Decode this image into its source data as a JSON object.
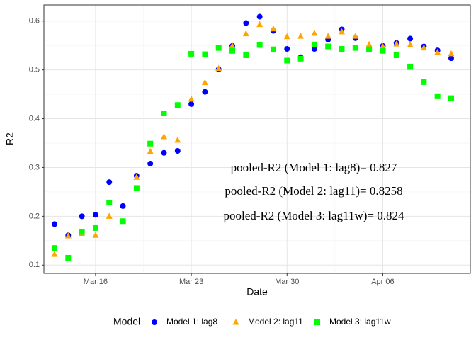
{
  "chart_data": {
    "type": "scatter",
    "x_label": "Date",
    "y_label": "R2",
    "categories": [
      "Mar 13",
      "Mar 14",
      "Mar 15",
      "Mar 16",
      "Mar 17",
      "Mar 18",
      "Mar 19",
      "Mar 20",
      "Mar 21",
      "Mar 22",
      "Mar 23",
      "Mar 24",
      "Mar 25",
      "Mar 26",
      "Mar 27",
      "Mar 28",
      "Mar 29",
      "Mar 30",
      "Mar 31",
      "Apr 01",
      "Apr 02",
      "Apr 03",
      "Apr 04",
      "Apr 05",
      "Apr 06",
      "Apr 07",
      "Apr 08",
      "Apr 09",
      "Apr 10",
      "Apr 11"
    ],
    "xticks": [
      "Mar 16",
      "Mar 23",
      "Mar 30",
      "Apr 06"
    ],
    "ylim": [
      0.083,
      0.633
    ],
    "yticks": [
      0.1,
      0.2,
      0.3,
      0.4,
      0.5,
      0.6
    ],
    "grid": true,
    "legend_title": "Model",
    "legend_position": "bottom",
    "series": [
      {
        "name": "Model 1: lag8",
        "color": "#0000ff",
        "shape": "circle",
        "values": [
          0.184,
          0.161,
          0.2,
          0.203,
          0.27,
          0.221,
          0.283,
          0.308,
          0.33,
          0.334,
          0.43,
          0.455,
          0.501,
          0.549,
          0.596,
          0.609,
          0.58,
          0.543,
          0.526,
          0.543,
          0.562,
          0.583,
          0.565,
          0.542,
          0.549,
          0.555,
          0.564,
          0.548,
          0.54,
          0.524
        ]
      },
      {
        "name": "Model 2: lag11",
        "color": "#ffa500",
        "shape": "triangle",
        "values": [
          0.122,
          0.16,
          0.165,
          0.161,
          0.2,
          0.19,
          0.28,
          0.333,
          0.363,
          0.356,
          0.44,
          0.474,
          0.503,
          0.549,
          0.574,
          0.593,
          0.584,
          0.568,
          0.569,
          0.575,
          0.569,
          0.578,
          0.569,
          0.552,
          0.548,
          0.553,
          0.551,
          0.545,
          0.536,
          0.533
        ]
      },
      {
        "name": "Model 3: lag11w",
        "color": "#00ff00",
        "shape": "square",
        "values": [
          0.135,
          0.115,
          0.168,
          0.176,
          0.228,
          0.19,
          0.258,
          0.349,
          0.411,
          0.428,
          0.533,
          0.532,
          0.545,
          0.539,
          0.53,
          0.551,
          0.542,
          0.519,
          0.523,
          0.552,
          0.548,
          0.543,
          0.545,
          0.542,
          0.539,
          0.53,
          0.506,
          0.475,
          0.446,
          0.442
        ]
      }
    ],
    "annotations": [
      "pooled-R2 (Model 1: lag8)= 0.827",
      "pooled-R2 (Model 2: lag11)= 0.8258",
      "pooled-R2 (Model 3: lag11w)= 0.824"
    ]
  }
}
